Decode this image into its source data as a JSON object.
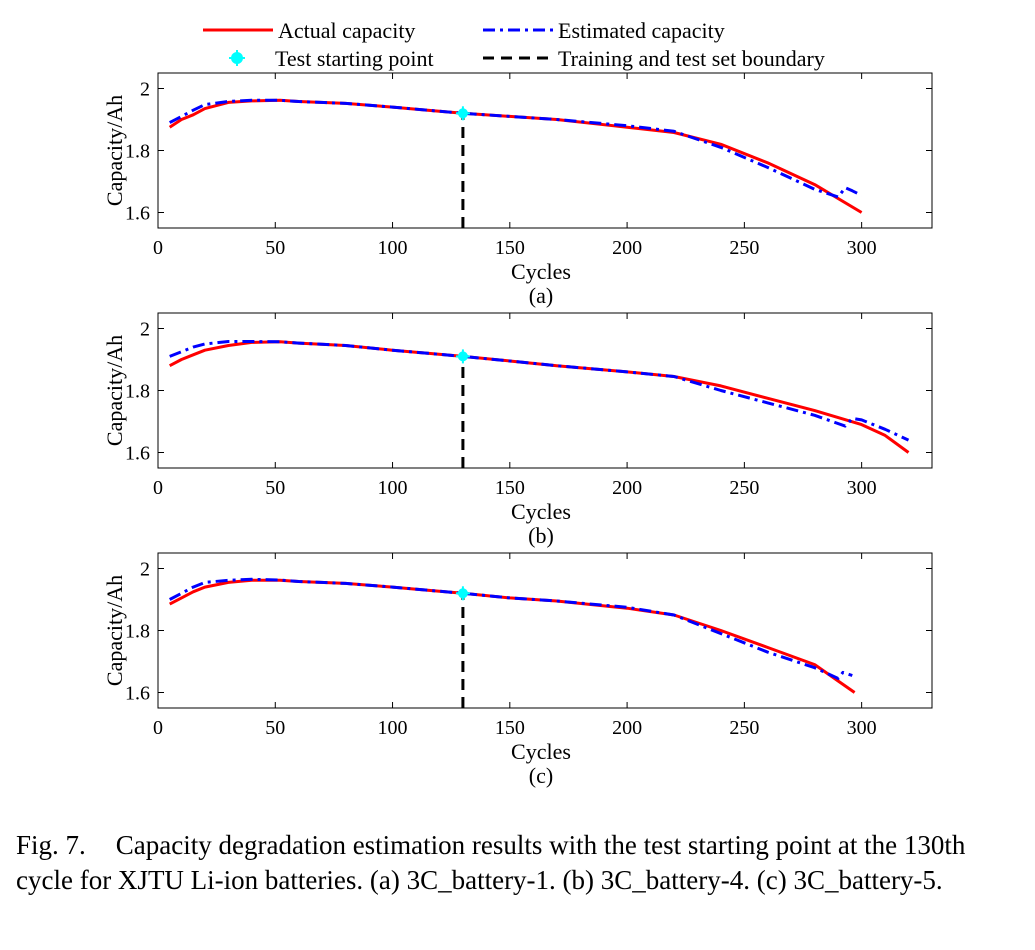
{
  "legend": {
    "items": [
      {
        "label": "Actual capacity",
        "color": "#ff0000",
        "style": "solid"
      },
      {
        "label": "Estimated capacity",
        "color": "#0000ff",
        "style": "dashdot"
      },
      {
        "label": "Test starting point",
        "color": "#00ffff",
        "style": "marker"
      },
      {
        "label": "Training and test set boundary",
        "color": "#000000",
        "style": "dashed"
      }
    ]
  },
  "colors": {
    "actual": "#ff0000",
    "estimated": "#0000ff",
    "start": "#00ffff",
    "boundary": "#000000"
  },
  "chart_data": [
    {
      "type": "line",
      "panel_label": "(a)",
      "xlabel": "Cycles",
      "ylabel": "Capacity/Ah",
      "xlim": [
        0,
        330
      ],
      "ylim": [
        1.55,
        2.05
      ],
      "xticks": [
        0,
        50,
        100,
        150,
        200,
        250,
        300
      ],
      "yticks": [
        1.6,
        1.8,
        2
      ],
      "boundary_x": 130,
      "start_point": {
        "x": 130,
        "y": 1.92
      },
      "series": [
        {
          "name": "Actual capacity",
          "x": [
            5,
            10,
            15,
            20,
            30,
            40,
            52,
            60,
            80,
            100,
            115,
            130,
            150,
            170,
            200,
            220,
            240,
            260,
            280,
            300
          ],
          "values": [
            1.875,
            1.9,
            1.915,
            1.935,
            1.955,
            1.96,
            1.962,
            1.958,
            1.952,
            1.94,
            1.93,
            1.92,
            1.91,
            1.9,
            1.875,
            1.858,
            1.82,
            1.76,
            1.69,
            1.6
          ]
        },
        {
          "name": "Estimated capacity",
          "x": [
            5,
            10,
            15,
            20,
            30,
            40,
            52,
            60,
            80,
            100,
            115,
            130,
            150,
            170,
            200,
            220,
            240,
            260,
            280,
            290,
            293,
            296,
            300
          ],
          "values": [
            1.89,
            1.91,
            1.93,
            1.948,
            1.958,
            1.962,
            1.962,
            1.958,
            1.952,
            1.94,
            1.93,
            1.92,
            1.91,
            1.9,
            1.88,
            1.862,
            1.81,
            1.745,
            1.675,
            1.65,
            1.68,
            1.67,
            1.655
          ]
        }
      ]
    },
    {
      "type": "line",
      "panel_label": "(b)",
      "xlabel": "Cycles",
      "ylabel": "Capacity/Ah",
      "xlim": [
        0,
        330
      ],
      "ylim": [
        1.55,
        2.05
      ],
      "xticks": [
        0,
        50,
        100,
        150,
        200,
        250,
        300
      ],
      "yticks": [
        1.6,
        1.8,
        2
      ],
      "boundary_x": 130,
      "start_point": {
        "x": 130,
        "y": 1.91
      },
      "series": [
        {
          "name": "Actual capacity",
          "x": [
            5,
            10,
            15,
            20,
            30,
            40,
            52,
            60,
            80,
            100,
            115,
            130,
            150,
            170,
            200,
            220,
            240,
            260,
            280,
            300,
            310,
            320
          ],
          "values": [
            1.88,
            1.9,
            1.915,
            1.93,
            1.945,
            1.955,
            1.957,
            1.953,
            1.945,
            1.93,
            1.92,
            1.91,
            1.895,
            1.88,
            1.86,
            1.845,
            1.815,
            1.775,
            1.735,
            1.69,
            1.655,
            1.6
          ]
        },
        {
          "name": "Estimated capacity",
          "x": [
            5,
            10,
            15,
            20,
            30,
            40,
            52,
            60,
            80,
            100,
            115,
            130,
            150,
            170,
            200,
            220,
            240,
            260,
            280,
            293,
            296,
            300,
            310,
            320
          ],
          "values": [
            1.91,
            1.925,
            1.94,
            1.95,
            1.958,
            1.958,
            1.957,
            1.953,
            1.945,
            1.93,
            1.92,
            1.91,
            1.895,
            1.88,
            1.86,
            1.845,
            1.8,
            1.76,
            1.72,
            1.685,
            1.71,
            1.705,
            1.675,
            1.64
          ]
        }
      ]
    },
    {
      "type": "line",
      "panel_label": "(c)",
      "xlabel": "Cycles",
      "ylabel": "Capacity/Ah",
      "xlim": [
        0,
        330
      ],
      "ylim": [
        1.55,
        2.05
      ],
      "xticks": [
        0,
        50,
        100,
        150,
        200,
        250,
        300
      ],
      "yticks": [
        1.6,
        1.8,
        2
      ],
      "boundary_x": 130,
      "start_point": {
        "x": 130,
        "y": 1.92
      },
      "series": [
        {
          "name": "Actual capacity",
          "x": [
            5,
            10,
            15,
            20,
            30,
            40,
            52,
            60,
            80,
            100,
            115,
            130,
            150,
            170,
            200,
            220,
            240,
            260,
            280,
            297
          ],
          "values": [
            1.885,
            1.905,
            1.925,
            1.94,
            1.955,
            1.962,
            1.962,
            1.958,
            1.952,
            1.94,
            1.93,
            1.92,
            1.905,
            1.895,
            1.872,
            1.85,
            1.8,
            1.745,
            1.69,
            1.6
          ]
        },
        {
          "name": "Estimated capacity",
          "x": [
            5,
            10,
            15,
            20,
            30,
            40,
            52,
            60,
            80,
            100,
            115,
            130,
            150,
            170,
            200,
            220,
            240,
            260,
            280,
            290,
            292,
            296
          ],
          "values": [
            1.9,
            1.92,
            1.94,
            1.955,
            1.962,
            1.965,
            1.963,
            1.958,
            1.952,
            1.94,
            1.93,
            1.92,
            1.905,
            1.895,
            1.875,
            1.85,
            1.79,
            1.73,
            1.68,
            1.645,
            1.665,
            1.655
          ]
        }
      ]
    }
  ],
  "caption": {
    "label": "Fig. 7.",
    "text": "Capacity degradation estimation results with the test starting point at the 130th cycle for XJTU Li-ion batteries. (a) 3C_battery-1. (b) 3C_battery-4. (c) 3C_battery-5."
  }
}
